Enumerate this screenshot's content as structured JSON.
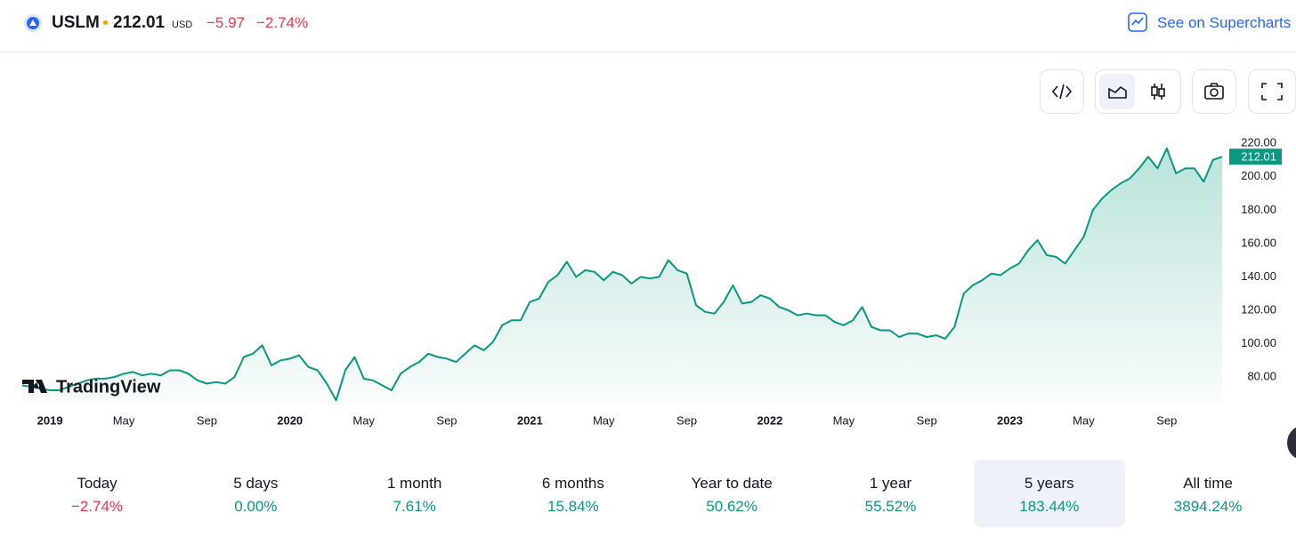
{
  "header": {
    "symbol": "USLM",
    "price": "212.01",
    "currency": "USD",
    "change": "−5.97",
    "change_pct": "−2.74%",
    "link": "See on Supercharts"
  },
  "watermark": "TradingView",
  "chart_data": {
    "type": "line",
    "color": "#089981",
    "categories": [
      null,
      null,
      null,
      "2019",
      null,
      null,
      null,
      null,
      null,
      null,
      null,
      "May",
      null,
      null,
      null,
      null,
      null,
      null,
      null,
      null,
      "Sep",
      null,
      null,
      null,
      null,
      null,
      null,
      null,
      null,
      "2020",
      null,
      null,
      null,
      null,
      null,
      null,
      null,
      "May",
      null,
      null,
      null,
      null,
      null,
      null,
      null,
      null,
      "Sep",
      null,
      null,
      null,
      null,
      null,
      null,
      null,
      null,
      "2021",
      null,
      null,
      null,
      null,
      null,
      null,
      null,
      "May",
      null,
      null,
      null,
      null,
      null,
      null,
      null,
      null,
      "Sep",
      null,
      null,
      null,
      null,
      null,
      null,
      null,
      null,
      "2022",
      null,
      null,
      null,
      null,
      null,
      null,
      null,
      "May",
      null,
      null,
      null,
      null,
      null,
      null,
      null,
      null,
      "Sep",
      null,
      null,
      null,
      null,
      null,
      null,
      null,
      null,
      "2023",
      null,
      null,
      null,
      null,
      null,
      null,
      null,
      "May",
      null,
      null,
      null,
      null,
      null,
      null,
      null,
      null,
      "Sep",
      null,
      null,
      null,
      null,
      null,
      null
    ],
    "values": [
      75,
      74,
      73,
      72,
      72,
      74,
      76,
      78,
      79,
      79,
      80,
      82,
      83,
      81,
      82,
      81,
      84,
      84,
      82,
      78,
      76,
      77,
      76,
      80,
      92,
      94,
      99,
      87,
      90,
      91,
      93,
      86,
      84,
      76,
      66,
      84,
      92,
      79,
      78,
      75,
      72,
      82,
      86,
      89,
      94,
      92,
      91,
      89,
      94,
      99,
      96,
      101,
      111,
      114,
      114,
      125,
      127,
      137,
      141,
      149,
      140,
      144,
      143,
      138,
      143,
      141,
      136,
      140,
      139,
      140,
      150,
      144,
      142,
      123,
      119,
      118,
      125,
      135,
      124,
      125,
      129,
      127,
      122,
      120,
      117,
      118,
      117,
      117,
      113,
      111,
      114,
      122,
      110,
      108,
      108,
      104,
      106,
      106,
      104,
      105,
      103,
      110,
      130,
      135,
      138,
      142,
      141,
      145,
      148,
      156,
      162,
      153,
      152,
      148,
      156,
      164,
      180,
      187,
      192,
      196,
      199,
      205,
      212,
      205,
      217,
      202,
      205,
      205,
      197,
      210,
      212.01
    ],
    "last_label": "212.01",
    "ylim": [
      63.5,
      226
    ],
    "yticks": [
      {
        "value": 80,
        "label": "80.00"
      },
      {
        "value": 100,
        "label": "100.00"
      },
      {
        "value": 120,
        "label": "120.00"
      },
      {
        "value": 140,
        "label": "140.00"
      },
      {
        "value": 160,
        "label": "160.00"
      },
      {
        "value": 180,
        "label": "180.00"
      },
      {
        "value": 200,
        "label": "200.00"
      },
      {
        "value": 220,
        "label": "220.00"
      }
    ],
    "grid": false
  },
  "periods": [
    {
      "label": "Today",
      "value": "−2.74%"
    },
    {
      "label": "5 days",
      "value": "0.00%"
    },
    {
      "label": "1 month",
      "value": "7.61%"
    },
    {
      "label": "6 months",
      "value": "15.84%"
    },
    {
      "label": "Year to date",
      "value": "50.62%"
    },
    {
      "label": "1 year",
      "value": "55.52%"
    },
    {
      "label": "5 years",
      "value": "183.44%"
    },
    {
      "label": "All time",
      "value": "3894.24%"
    }
  ],
  "selected_period": 6
}
